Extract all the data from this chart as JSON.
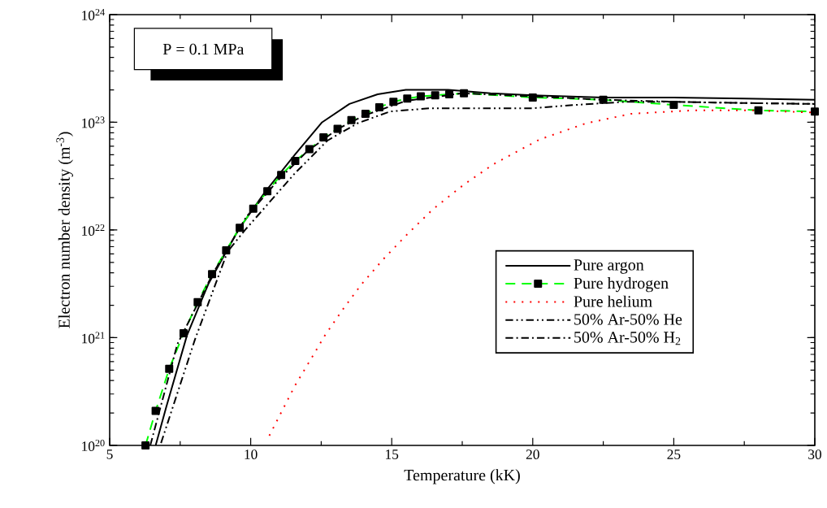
{
  "chart_data": {
    "type": "line",
    "xlabel": "Temperature (kK)",
    "ylabel": "Electron number density (m$^{-3}$)",
    "xlim": [
      5,
      30
    ],
    "ylim": [
      1e+20,
      1e+24
    ],
    "log": "y",
    "xticks": [
      5,
      10,
      15,
      20,
      25,
      30
    ],
    "yticks": [
      {
        "value": 1e+20,
        "label": "10$^{20}$"
      },
      {
        "value": 1e+21,
        "label": "10$^{21}$"
      },
      {
        "value": 1e+22,
        "label": "10$^{22}$"
      },
      {
        "value": 1e+23,
        "label": "10$^{23}$"
      },
      {
        "value": 1e+24,
        "label": "10$^{24}$"
      }
    ],
    "grid": false,
    "legend": "bottom right",
    "annotations": [
      "P = 0.1 MPa"
    ],
    "series": [
      {
        "name": "Pure argon",
        "color": "#000000",
        "line_style": "solid",
        "x": [
          6.63,
          7.0,
          7.74,
          8.5,
          9.56,
          10.5,
          11.57,
          12.53,
          13.5,
          14.5,
          15.5,
          17.0,
          18.5,
          20.0,
          22.5,
          25.0,
          27.5,
          30.0
        ],
        "values": [
          1e+20,
          2.24e+20,
          1.05e+21,
          3.16e+21,
          1e+22,
          2.24e+22,
          5.01e+22,
          1e+23,
          1.48e+23,
          1.82e+23,
          2e+23,
          2e+23,
          1.86e+23,
          1.78e+23,
          1.7e+23,
          1.7e+23,
          1.66e+23,
          1.62e+23
        ]
      },
      {
        "name": "Pure hydrogen",
        "color": "#00ff00",
        "line_style": "dashed",
        "marker": "square",
        "x": [
          6.27,
          6.63,
          7.11,
          7.62,
          8.12,
          8.63,
          9.13,
          9.61,
          10.09,
          10.59,
          11.08,
          11.58,
          12.08,
          12.58,
          13.08,
          13.57,
          14.07,
          14.56,
          15.06,
          15.55,
          16.03,
          16.54,
          17.04,
          17.56,
          20.0,
          22.5,
          25.0,
          28.0,
          30.0
        ],
        "values": [
          1e+20,
          2.09e+20,
          5.13e+20,
          1.1e+21,
          2.14e+21,
          3.89e+21,
          6.46e+21,
          1.05e+22,
          1.58e+22,
          2.29e+22,
          3.24e+22,
          4.37e+22,
          5.62e+22,
          7.24e+22,
          8.71e+22,
          1.05e+23,
          1.2e+23,
          1.38e+23,
          1.55e+23,
          1.66e+23,
          1.74e+23,
          1.78e+23,
          1.82e+23,
          1.86e+23,
          1.7e+23,
          1.62e+23,
          1.45e+23,
          1.29e+23,
          1.26e+23
        ]
      },
      {
        "name": "Pure helium",
        "color": "#ff0000",
        "line_style": "dotted",
        "x": [
          10.66,
          11.11,
          11.58,
          12.11,
          12.63,
          13.26,
          13.91,
          14.67,
          15.51,
          16.45,
          17.55,
          18.6,
          20.24,
          21.88,
          23.49,
          25.65,
          27.86,
          30.0
        ],
        "values": [
          1.23e+20,
          2.09e+20,
          3.63e+20,
          6.17e+20,
          1.05e+21,
          1.82e+21,
          3.09e+21,
          5.25e+21,
          8.91e+21,
          1.55e+22,
          2.63e+22,
          4.07e+22,
          6.92e+22,
          9.77e+22,
          1.2e+23,
          1.29e+23,
          1.29e+23,
          1.23e+23
        ]
      },
      {
        "name": "50% Ar-50% He",
        "color": "#000000",
        "line_style": "dashdotdot",
        "x": [
          6.82,
          8.02,
          9.18,
          9.8,
          11.58,
          12.72,
          13.78,
          14.94,
          16.38,
          17.9,
          20.0,
          21.5,
          23.3,
          25.0,
          27.5,
          30.0
        ],
        "values": [
          1.05e+20,
          9.55e+20,
          6.31e+21,
          1e+22,
          3.39e+22,
          6.76e+22,
          9.77e+22,
          1.26e+23,
          1.35e+23,
          1.35e+23,
          1.35e+23,
          1.45e+23,
          1.55e+23,
          1.55e+23,
          1.51e+23,
          1.48e+23
        ]
      },
      {
        "name": "50% Ar-50% H$_{2}$",
        "color": "#000000",
        "line_style": "dashdot",
        "x": [
          6.44,
          7.4,
          8.65,
          9.84,
          11.0,
          12.0,
          13.1,
          14.0,
          15.5,
          17.5,
          20.0,
          22.5,
          25.0,
          27.5,
          30.0
        ],
        "values": [
          1e+20,
          8.71e+20,
          3.89e+21,
          1.32e+22,
          2.95e+22,
          5.37e+22,
          8.71e+22,
          1.15e+23,
          1.58e+23,
          1.86e+23,
          1.74e+23,
          1.62e+23,
          1.55e+23,
          1.51e+23,
          1.48e+23
        ]
      }
    ]
  }
}
